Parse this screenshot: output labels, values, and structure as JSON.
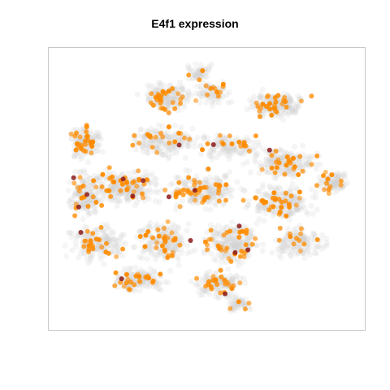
{
  "chart_data": {
    "type": "scatter",
    "title": "E4f1 expression",
    "xlabel": "",
    "ylabel": "",
    "axes_visible": false,
    "grid": false,
    "legend": "none",
    "colors": {
      "background_cells": "#d3d3d3",
      "expressing_cells": "#ff8c00",
      "high_expression": "#8b1a1a",
      "frame": "#c8c8c8"
    },
    "background_cells_note_count": 3000,
    "expressing_cells_count": 430,
    "high_expression_cells_count": 18
  }
}
